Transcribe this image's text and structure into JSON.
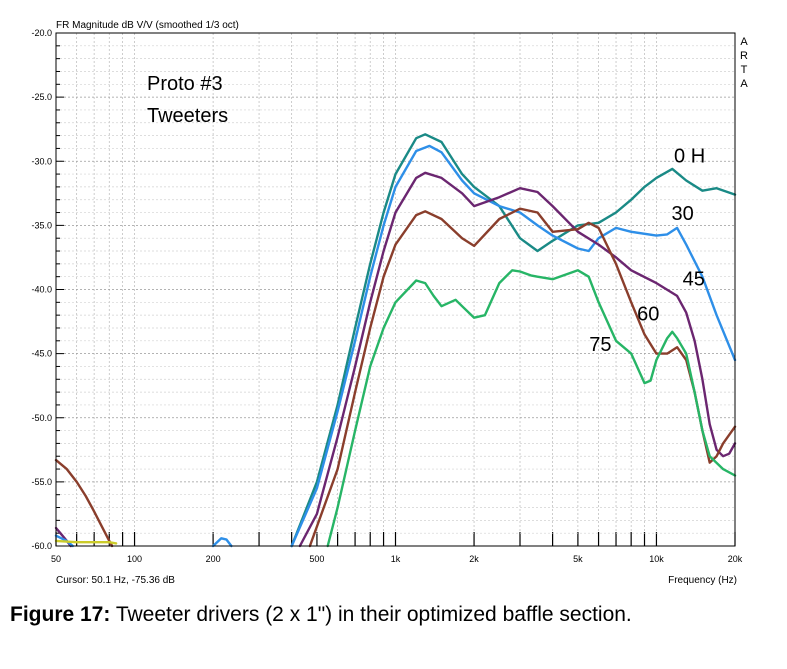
{
  "header": {
    "title": "FR Magnitude dB V/V (smoothed 1/3 oct)",
    "watermark": [
      "A",
      "R",
      "T",
      "A"
    ],
    "cursor": "Cursor: 50.1 Hz, -75.36 dB",
    "xlabel": "Frequency (Hz)"
  },
  "annotation": {
    "line1": "Proto #3",
    "line2": "Tweeters"
  },
  "caption": {
    "label": "Figure 17:",
    "text": " Tweeter drivers (2 x 1\") in their optimized baffle section."
  },
  "chart_data": {
    "type": "line",
    "title": "FR Magnitude dB V/V (smoothed 1/3 oct)",
    "xlabel": "Frequency (Hz)",
    "ylabel": "",
    "xscale": "log",
    "xlim": [
      50,
      20000
    ],
    "ylim": [
      -60,
      -20
    ],
    "grid": true,
    "x_tick_labels": [
      {
        "value": 50,
        "label": "50"
      },
      {
        "value": 100,
        "label": "100"
      },
      {
        "value": 200,
        "label": "200"
      },
      {
        "value": 500,
        "label": "500"
      },
      {
        "value": 1000,
        "label": "1k"
      },
      {
        "value": 2000,
        "label": "2k"
      },
      {
        "value": 5000,
        "label": "5k"
      },
      {
        "value": 10000,
        "label": "10k"
      },
      {
        "value": 20000,
        "label": "20k"
      }
    ],
    "y_tick_labels": [
      {
        "value": -20,
        "label": "-20.0"
      },
      {
        "value": -25,
        "label": "-25.0"
      },
      {
        "value": -30,
        "label": "-30.0"
      },
      {
        "value": -35,
        "label": "-35.0"
      },
      {
        "value": -40,
        "label": "-40.0"
      },
      {
        "value": -45,
        "label": "-45.0"
      },
      {
        "value": -50,
        "label": "-50.0"
      },
      {
        "value": -55,
        "label": "-55.0"
      },
      {
        "value": -60,
        "label": "-60.0"
      }
    ],
    "series": [
      {
        "name": "0 H",
        "color": "#1a8a86",
        "label_at": [
          13400,
          -30.1
        ],
        "points": [
          [
            400,
            -60
          ],
          [
            500,
            -55
          ],
          [
            600,
            -49
          ],
          [
            700,
            -43
          ],
          [
            800,
            -38
          ],
          [
            900,
            -34
          ],
          [
            1000,
            -31
          ],
          [
            1200,
            -28.2
          ],
          [
            1300,
            -27.9
          ],
          [
            1500,
            -28.5
          ],
          [
            1800,
            -31
          ],
          [
            2000,
            -32
          ],
          [
            2500,
            -33.5
          ],
          [
            3000,
            -36
          ],
          [
            3500,
            -37
          ],
          [
            4000,
            -36.2
          ],
          [
            5000,
            -35
          ],
          [
            6000,
            -34.8
          ],
          [
            7000,
            -34
          ],
          [
            8000,
            -33
          ],
          [
            9000,
            -32
          ],
          [
            10000,
            -31.3
          ],
          [
            11500,
            -30.6
          ],
          [
            13000,
            -31.5
          ],
          [
            15000,
            -32.3
          ],
          [
            17000,
            -32.1
          ],
          [
            20000,
            -32.6
          ]
        ]
      },
      {
        "name": "30",
        "color": "#2e8fe8",
        "label_at": [
          12600,
          -34.6
        ],
        "points": [
          [
            400,
            -60
          ],
          [
            500,
            -55.5
          ],
          [
            600,
            -49.5
          ],
          [
            700,
            -44
          ],
          [
            800,
            -39
          ],
          [
            900,
            -35
          ],
          [
            1000,
            -32
          ],
          [
            1200,
            -29.2
          ],
          [
            1350,
            -28.8
          ],
          [
            1500,
            -29.3
          ],
          [
            1800,
            -31.5
          ],
          [
            2000,
            -32.5
          ],
          [
            2500,
            -33.5
          ],
          [
            3000,
            -34
          ],
          [
            3500,
            -35
          ],
          [
            4000,
            -35.8
          ],
          [
            5000,
            -36.8
          ],
          [
            5500,
            -37
          ],
          [
            6000,
            -36
          ],
          [
            7000,
            -35.2
          ],
          [
            8000,
            -35.5
          ],
          [
            10000,
            -35.8
          ],
          [
            11000,
            -35.7
          ],
          [
            12000,
            -35.2
          ],
          [
            13000,
            -36.5
          ],
          [
            15000,
            -39
          ],
          [
            17000,
            -42
          ],
          [
            20000,
            -45.5
          ]
        ]
      },
      {
        "name": "45",
        "color": "#6b2670",
        "label_at": [
          13900,
          -39.7
        ],
        "points": [
          [
            430,
            -60
          ],
          [
            500,
            -57.5
          ],
          [
            600,
            -51.5
          ],
          [
            700,
            -46
          ],
          [
            800,
            -41
          ],
          [
            900,
            -37
          ],
          [
            1000,
            -34
          ],
          [
            1200,
            -31.3
          ],
          [
            1300,
            -30.9
          ],
          [
            1500,
            -31.3
          ],
          [
            1800,
            -32.5
          ],
          [
            2000,
            -33.5
          ],
          [
            2500,
            -32.8
          ],
          [
            3000,
            -32.1
          ],
          [
            3500,
            -32.4
          ],
          [
            4000,
            -33.5
          ],
          [
            5000,
            -35.5
          ],
          [
            6000,
            -36.5
          ],
          [
            7000,
            -37.5
          ],
          [
            8000,
            -38.5
          ],
          [
            10000,
            -39.5
          ],
          [
            12000,
            -40.5
          ],
          [
            13000,
            -41.8
          ],
          [
            14000,
            -44
          ],
          [
            15000,
            -47
          ],
          [
            16000,
            -50.5
          ],
          [
            17000,
            -52.5
          ],
          [
            18000,
            -53
          ],
          [
            19000,
            -52.8
          ],
          [
            20000,
            -52
          ]
        ]
      },
      {
        "name": "60",
        "color": "#8a3e2c",
        "label_at": [
          9300,
          -42.4
        ],
        "points": [
          [
            470,
            -60
          ],
          [
            600,
            -54
          ],
          [
            700,
            -48
          ],
          [
            800,
            -43
          ],
          [
            900,
            -39
          ],
          [
            1000,
            -36.5
          ],
          [
            1200,
            -34.2
          ],
          [
            1300,
            -33.9
          ],
          [
            1500,
            -34.5
          ],
          [
            1800,
            -36
          ],
          [
            2000,
            -36.6
          ],
          [
            2500,
            -34.5
          ],
          [
            3000,
            -33.7
          ],
          [
            3500,
            -34
          ],
          [
            4000,
            -35.5
          ],
          [
            5000,
            -35.3
          ],
          [
            5500,
            -34.8
          ],
          [
            6000,
            -35.2
          ],
          [
            7000,
            -38
          ],
          [
            8000,
            -41
          ],
          [
            9000,
            -43.5
          ],
          [
            10000,
            -45
          ],
          [
            11000,
            -45
          ],
          [
            12000,
            -44.5
          ],
          [
            13000,
            -45.5
          ],
          [
            14000,
            -48
          ],
          [
            15000,
            -51
          ],
          [
            16000,
            -53.5
          ],
          [
            17000,
            -53
          ],
          [
            18000,
            -52
          ],
          [
            20000,
            -50.7
          ]
        ]
      },
      {
        "name": "75",
        "color": "#27b566",
        "label_at": [
          6100,
          -44.8
        ],
        "points": [
          [
            550,
            -60
          ],
          [
            600,
            -57
          ],
          [
            700,
            -51
          ],
          [
            800,
            -46
          ],
          [
            900,
            -43
          ],
          [
            1000,
            -41
          ],
          [
            1200,
            -39.3
          ],
          [
            1300,
            -39.5
          ],
          [
            1400,
            -40.5
          ],
          [
            1500,
            -41.3
          ],
          [
            1700,
            -40.8
          ],
          [
            1800,
            -41.3
          ],
          [
            2000,
            -42.2
          ],
          [
            2200,
            -42
          ],
          [
            2500,
            -39.5
          ],
          [
            2800,
            -38.5
          ],
          [
            3000,
            -38.6
          ],
          [
            3300,
            -38.9
          ],
          [
            3500,
            -39
          ],
          [
            4000,
            -39.2
          ],
          [
            5000,
            -38.5
          ],
          [
            5500,
            -39
          ],
          [
            6000,
            -41
          ],
          [
            7000,
            -44
          ],
          [
            8000,
            -45
          ],
          [
            9000,
            -47.3
          ],
          [
            9500,
            -47.1
          ],
          [
            10000,
            -45.5
          ],
          [
            11000,
            -43.8
          ],
          [
            11500,
            -43.3
          ],
          [
            12000,
            -43.8
          ],
          [
            13000,
            -45
          ],
          [
            14000,
            -48
          ],
          [
            15000,
            -51
          ],
          [
            16000,
            -53
          ],
          [
            18000,
            -54
          ],
          [
            20000,
            -54.5
          ]
        ]
      },
      {
        "name": "",
        "color": "#8a3e2c",
        "points": [
          [
            50,
            -53.3
          ],
          [
            55,
            -54
          ],
          [
            60,
            -55
          ],
          [
            65,
            -56.1
          ],
          [
            70,
            -57.3
          ],
          [
            75,
            -58.5
          ],
          [
            80,
            -59.6
          ],
          [
            82,
            -60
          ]
        ]
      },
      {
        "name": "",
        "color": "#6b2670",
        "points": [
          [
            50,
            -58.6
          ],
          [
            52,
            -59
          ],
          [
            55,
            -59.6
          ],
          [
            57,
            -60
          ]
        ]
      },
      {
        "name": "",
        "color": "#2e8fe8",
        "points": [
          [
            50,
            -59.2
          ],
          [
            55,
            -59.6
          ],
          [
            58,
            -60
          ]
        ]
      },
      {
        "name": "",
        "color": "#cccc2a",
        "points": [
          [
            50,
            -59.6
          ],
          [
            60,
            -59.7
          ],
          [
            70,
            -59.7
          ],
          [
            80,
            -59.7
          ],
          [
            85,
            -59.8
          ]
        ]
      },
      {
        "name": "",
        "color": "#2e8fe8",
        "points": [
          [
            200,
            -60
          ],
          [
            215,
            -59.4
          ],
          [
            225,
            -59.5
          ],
          [
            235,
            -60
          ]
        ]
      }
    ]
  }
}
